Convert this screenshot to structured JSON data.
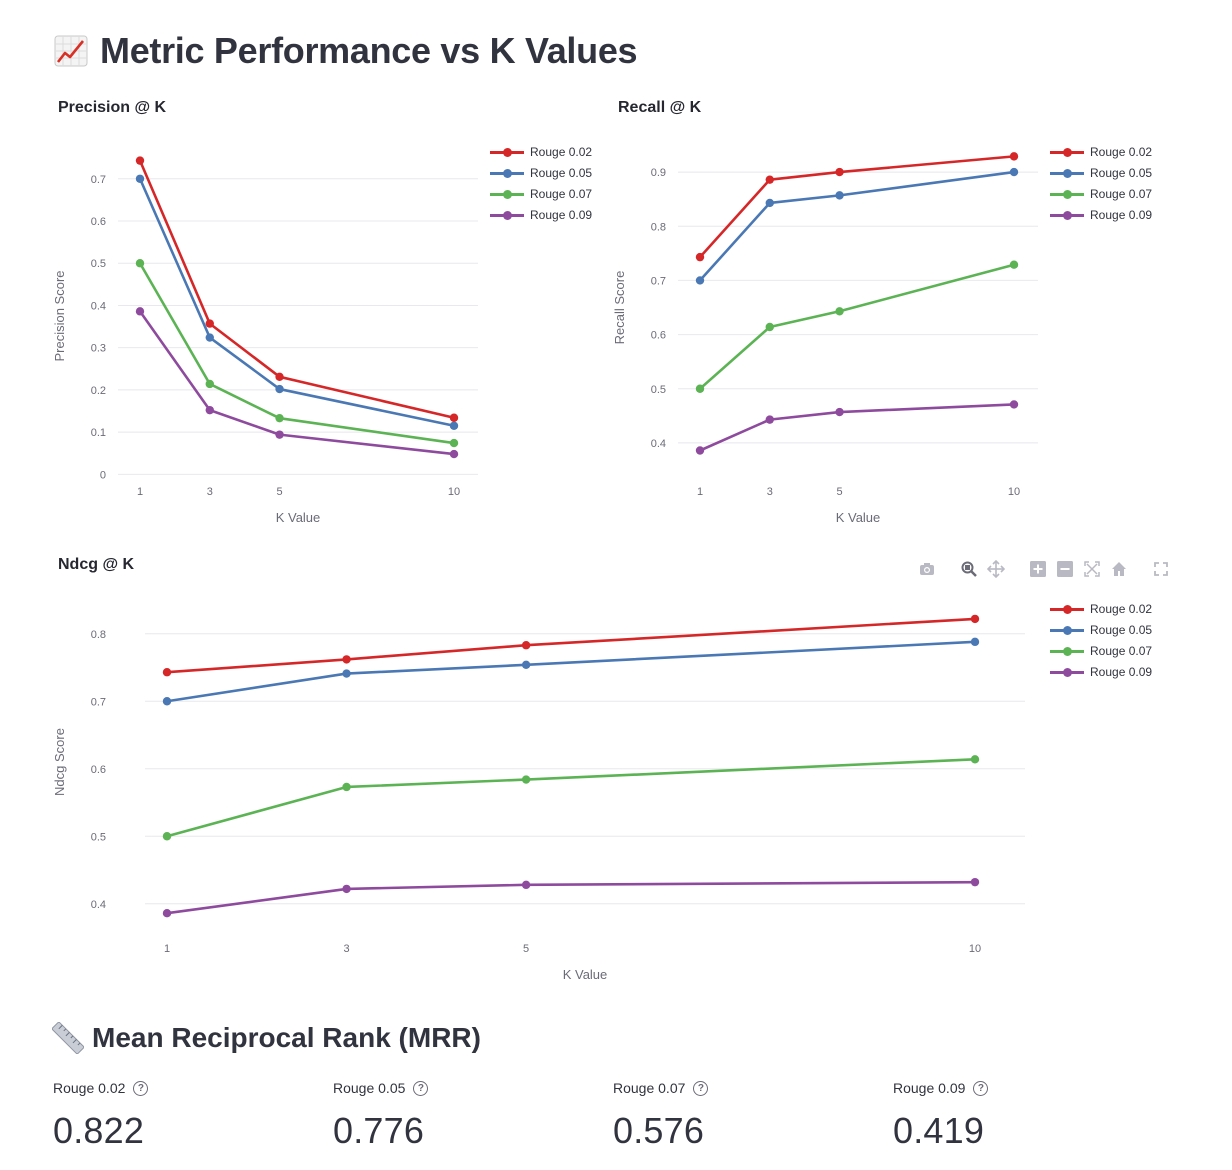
{
  "page": {
    "title": "Metric Performance vs K Values",
    "title_icon": "chart-increasing-icon",
    "mrr_title": "Mean Reciprocal Rank (MRR)",
    "mrr_icon": "ruler-icon"
  },
  "colors": {
    "rouge_002": "#d62728",
    "rouge_005": "#4a78b4",
    "rouge_007": "#5bb354",
    "rouge_009": "#8e4b9e"
  },
  "legend": [
    "Rouge 0.02",
    "Rouge 0.05",
    "Rouge 0.07",
    "Rouge 0.09"
  ],
  "modebar": {
    "buttons": [
      "camera-icon",
      "zoom-icon",
      "pan-icon",
      "zoom-in-icon",
      "zoom-out-icon",
      "autoscale-icon",
      "reset-axes-icon",
      "fullscreen-icon"
    ],
    "active": "zoom-icon"
  },
  "chart_data": [
    {
      "type": "line",
      "title": "Precision @ K",
      "xlabel": "K Value",
      "ylabel": "Precision Score",
      "x": [
        1,
        3,
        5,
        10
      ],
      "xticks": [
        "1",
        "3",
        "5",
        "10"
      ],
      "ylim": [
        -0.03,
        0.78
      ],
      "yticks": [
        0,
        0.1,
        0.2,
        0.3,
        0.4,
        0.5,
        0.6,
        0.7
      ],
      "ytick_labels": [
        "0",
        "0.1",
        "0.2",
        "0.3",
        "0.4",
        "0.5",
        "0.6",
        "0.7"
      ],
      "grid": true,
      "legend_position": "top-right outside",
      "series": [
        {
          "name": "Rouge 0.02",
          "color": "#d62728",
          "values": [
            0.743,
            0.357,
            0.231,
            0.134
          ]
        },
        {
          "name": "Rouge 0.05",
          "color": "#4a78b4",
          "values": [
            0.7,
            0.324,
            0.202,
            0.115
          ]
        },
        {
          "name": "Rouge 0.07",
          "color": "#5bb354",
          "values": [
            0.5,
            0.214,
            0.133,
            0.074
          ]
        },
        {
          "name": "Rouge 0.09",
          "color": "#8e4b9e",
          "values": [
            0.386,
            0.152,
            0.094,
            0.048
          ]
        }
      ]
    },
    {
      "type": "line",
      "title": "Recall @ K",
      "xlabel": "K Value",
      "ylabel": "Recall Score",
      "x": [
        1,
        3,
        5,
        10
      ],
      "xticks": [
        "1",
        "3",
        "5",
        "10"
      ],
      "ylim": [
        0.35,
        0.95
      ],
      "yticks": [
        0.4,
        0.5,
        0.6,
        0.7,
        0.8,
        0.9
      ],
      "ytick_labels": [
        "0.4",
        "0.5",
        "0.6",
        "0.7",
        "0.8",
        "0.9"
      ],
      "grid": true,
      "legend_position": "top-right outside",
      "series": [
        {
          "name": "Rouge 0.02",
          "color": "#d62728",
          "values": [
            0.743,
            0.886,
            0.9,
            0.929
          ]
        },
        {
          "name": "Rouge 0.05",
          "color": "#4a78b4",
          "values": [
            0.7,
            0.843,
            0.857,
            0.9
          ]
        },
        {
          "name": "Rouge 0.07",
          "color": "#5bb354",
          "values": [
            0.5,
            0.614,
            0.643,
            0.729
          ]
        },
        {
          "name": "Rouge 0.09",
          "color": "#8e4b9e",
          "values": [
            0.386,
            0.443,
            0.457,
            0.471
          ]
        }
      ]
    },
    {
      "type": "line",
      "title": "Ndcg @ K",
      "xlabel": "K Value",
      "ylabel": "Ndcg Score",
      "x": [
        1,
        3,
        5,
        10
      ],
      "xticks": [
        "1",
        "3",
        "5",
        "10"
      ],
      "ylim": [
        0.37,
        0.85
      ],
      "yticks": [
        0.4,
        0.5,
        0.6,
        0.7,
        0.8
      ],
      "ytick_labels": [
        "0.4",
        "0.5",
        "0.6",
        "0.7",
        "0.8"
      ],
      "grid": true,
      "legend_position": "top-right outside",
      "series": [
        {
          "name": "Rouge 0.02",
          "color": "#d62728",
          "values": [
            0.743,
            0.762,
            0.783,
            0.822
          ]
        },
        {
          "name": "Rouge 0.05",
          "color": "#4a78b4",
          "values": [
            0.7,
            0.741,
            0.754,
            0.788
          ]
        },
        {
          "name": "Rouge 0.07",
          "color": "#5bb354",
          "values": [
            0.5,
            0.573,
            0.584,
            0.614
          ]
        },
        {
          "name": "Rouge 0.09",
          "color": "#8e4b9e",
          "values": [
            0.386,
            0.422,
            0.428,
            0.432
          ]
        }
      ]
    }
  ],
  "mrr": [
    {
      "label": "Rouge 0.02",
      "value": "0.822"
    },
    {
      "label": "Rouge 0.05",
      "value": "0.776"
    },
    {
      "label": "Rouge 0.07",
      "value": "0.576"
    },
    {
      "label": "Rouge 0.09",
      "value": "0.419"
    }
  ]
}
